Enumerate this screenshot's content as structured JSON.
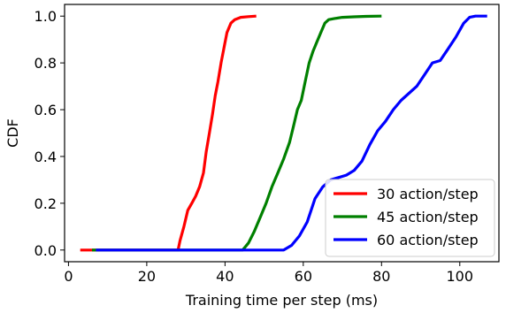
{
  "chart_data": {
    "type": "line",
    "title": "",
    "xlabel": "Training time per step (ms)",
    "ylabel": "CDF",
    "xlim": [
      -1,
      110
    ],
    "ylim": [
      -0.05,
      1.05
    ],
    "xticks": [
      0,
      20,
      40,
      60,
      80,
      100
    ],
    "yticks": [
      0.0,
      0.2,
      0.4,
      0.6,
      0.8,
      1.0
    ],
    "grid": false,
    "legend_position": "lower-right",
    "series": [
      {
        "name": "30 action/step",
        "color": "#ff0000",
        "x": [
          3,
          28,
          28.5,
          29.5,
          30.5,
          31.5,
          32.5,
          33.5,
          34.5,
          35.2,
          36,
          36.8,
          37.5,
          38.2,
          39,
          39.8,
          40.5,
          41.5,
          42.5,
          44,
          46,
          48
        ],
        "y": [
          0.0,
          0.0,
          0.04,
          0.1,
          0.17,
          0.2,
          0.23,
          0.27,
          0.33,
          0.42,
          0.5,
          0.58,
          0.66,
          0.72,
          0.8,
          0.87,
          0.93,
          0.97,
          0.985,
          0.995,
          0.998,
          1.0
        ]
      },
      {
        "name": "45 action/step",
        "color": "#008000",
        "x": [
          6,
          44.5,
          46,
          47.5,
          49,
          50.5,
          52,
          53.5,
          55,
          56.5,
          57.5,
          58.5,
          59.5,
          60.5,
          61.5,
          62.5,
          63.5,
          64.5,
          65.5,
          66.5,
          68,
          70,
          73,
          76,
          80
        ],
        "y": [
          0.0,
          0.0,
          0.03,
          0.08,
          0.14,
          0.2,
          0.27,
          0.33,
          0.39,
          0.46,
          0.53,
          0.6,
          0.64,
          0.72,
          0.8,
          0.85,
          0.89,
          0.93,
          0.97,
          0.985,
          0.99,
          0.995,
          0.997,
          0.999,
          1.0
        ]
      },
      {
        "name": "60 action/step",
        "color": "#0000ff",
        "x": [
          7,
          55,
          57,
          59,
          61,
          63,
          65,
          67,
          69,
          71,
          73,
          75,
          77,
          79,
          81,
          83,
          85,
          87,
          89,
          91,
          93,
          95,
          97,
          99,
          101,
          102.5,
          104,
          107
        ],
        "y": [
          0.0,
          0.0,
          0.02,
          0.06,
          0.12,
          0.22,
          0.27,
          0.3,
          0.31,
          0.32,
          0.34,
          0.38,
          0.45,
          0.51,
          0.55,
          0.6,
          0.64,
          0.67,
          0.7,
          0.75,
          0.8,
          0.81,
          0.86,
          0.91,
          0.97,
          0.995,
          1.0,
          1.0
        ]
      }
    ]
  }
}
